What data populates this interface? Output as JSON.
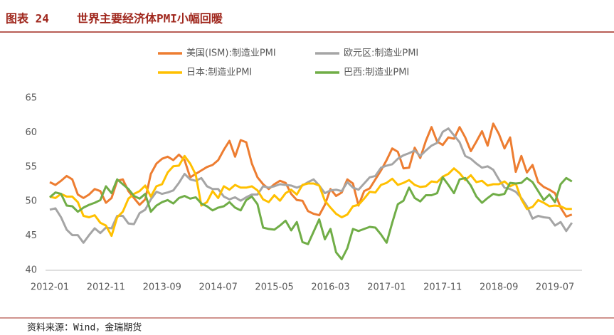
{
  "header": {
    "label": "图表 24",
    "title": "世界主要经济体PMI小幅回暖"
  },
  "source": "资料来源：Wind，金瑞期货",
  "chart_data": {
    "type": "line",
    "categories": [
      "2012-01",
      null,
      null,
      null,
      null,
      null,
      null,
      null,
      null,
      null,
      "2012-11",
      null,
      null,
      null,
      null,
      null,
      null,
      null,
      null,
      null,
      "2013-09",
      null,
      null,
      null,
      null,
      null,
      null,
      null,
      null,
      null,
      "2014-07",
      null,
      null,
      null,
      null,
      null,
      null,
      null,
      null,
      null,
      "2015-05",
      null,
      null,
      null,
      null,
      null,
      null,
      null,
      null,
      null,
      "2016-03",
      null,
      null,
      null,
      null,
      null,
      null,
      null,
      null,
      null,
      "2017-01",
      null,
      null,
      null,
      null,
      null,
      null,
      null,
      null,
      null,
      "2017-11",
      null,
      null,
      null,
      null,
      null,
      null,
      null,
      null,
      null,
      "2018-09",
      null,
      null,
      null,
      null,
      null,
      null,
      null,
      null,
      null,
      "2019-07",
      null,
      null,
      null
    ],
    "series": [
      {
        "name": "美国(ISM):制造业PMI",
        "color": "#ed7d31",
        "values": [
          52.8,
          52.4,
          53.0,
          53.7,
          53.2,
          51.0,
          50.5,
          51.0,
          51.8,
          51.5,
          49.8,
          50.5,
          53.0,
          53.2,
          51.5,
          50.5,
          49.5,
          50.3,
          54.0,
          55.5,
          56.2,
          56.5,
          56.0,
          56.8,
          56.0,
          53.5,
          54.0,
          54.5,
          55.0,
          55.3,
          56.0,
          57.5,
          58.8,
          56.5,
          58.9,
          58.6,
          55.5,
          53.5,
          52.5,
          51.8,
          52.5,
          53.0,
          52.7,
          51.1,
          50.2,
          50.1,
          48.6,
          48.2,
          48.0,
          49.5,
          51.8,
          50.8,
          51.3,
          53.2,
          52.6,
          49.4,
          51.5,
          51.9,
          53.2,
          54.5,
          56.0,
          57.7,
          57.2,
          54.8,
          54.9,
          57.8,
          56.3,
          58.8,
          60.8,
          58.7,
          58.2,
          59.3,
          59.1,
          60.8,
          59.3,
          57.3,
          58.7,
          60.2,
          58.1,
          61.3,
          59.8,
          57.7,
          59.3,
          54.3,
          56.6,
          54.2,
          55.3,
          52.8,
          52.1,
          51.7,
          51.2,
          49.1,
          47.8,
          48.1
        ]
      },
      {
        "name": "欧元区:制造业PMI",
        "color": "#a5a5a5",
        "values": [
          48.8,
          49.0,
          47.7,
          45.9,
          45.1,
          45.1,
          44.0,
          45.1,
          46.1,
          45.4,
          46.2,
          46.1,
          47.9,
          47.9,
          46.8,
          46.7,
          48.3,
          48.8,
          50.3,
          51.4,
          51.1,
          51.3,
          51.6,
          52.7,
          54.0,
          53.2,
          53.0,
          53.4,
          52.2,
          51.8,
          51.8,
          50.7,
          50.3,
          50.6,
          50.1,
          50.6,
          51.0,
          51.0,
          52.2,
          52.0,
          52.2,
          52.5,
          52.4,
          52.3,
          52.0,
          52.3,
          52.8,
          53.2,
          52.3,
          51.2,
          51.6,
          51.7,
          51.5,
          52.8,
          52.0,
          51.7,
          52.6,
          53.5,
          53.7,
          54.9,
          55.2,
          55.4,
          56.2,
          56.7,
          57.0,
          57.4,
          56.6,
          57.4,
          58.1,
          58.5,
          60.1,
          60.6,
          59.6,
          58.6,
          56.6,
          56.2,
          55.5,
          54.9,
          55.1,
          54.6,
          53.2,
          52.0,
          51.8,
          51.4,
          50.5,
          49.3,
          47.5,
          47.9,
          47.7,
          47.6,
          46.5,
          47.0,
          45.7,
          46.9
        ]
      },
      {
        "name": "日本:制造业PMI",
        "color": "#ffc000",
        "values": [
          50.7,
          50.5,
          51.1,
          50.7,
          50.7,
          49.9,
          47.9,
          47.7,
          48.0,
          46.9,
          46.5,
          45.0,
          47.7,
          48.5,
          50.4,
          51.1,
          51.5,
          52.3,
          50.7,
          52.2,
          52.5,
          54.2,
          55.1,
          55.2,
          56.6,
          55.5,
          53.9,
          49.4,
          49.9,
          51.5,
          50.5,
          52.2,
          51.7,
          52.4,
          52.0,
          52.0,
          52.2,
          51.6,
          50.3,
          49.9,
          50.9,
          50.1,
          51.2,
          51.7,
          51.0,
          52.4,
          52.6,
          52.6,
          52.3,
          50.1,
          49.1,
          48.2,
          47.7,
          48.1,
          49.3,
          49.5,
          50.4,
          51.4,
          51.3,
          52.4,
          52.7,
          53.3,
          52.4,
          52.7,
          53.1,
          52.4,
          52.1,
          52.2,
          52.9,
          52.8,
          53.6,
          54.0,
          54.8,
          54.1,
          53.1,
          53.8,
          52.8,
          53.0,
          52.3,
          52.5,
          52.5,
          52.9,
          52.2,
          52.6,
          50.3,
          48.9,
          49.2,
          50.2,
          49.8,
          49.3,
          49.4,
          49.3,
          48.9,
          48.9
        ]
      },
      {
        "name": "巴西:制造业PMI",
        "color": "#70ad47",
        "values": [
          50.6,
          51.3,
          51.1,
          49.4,
          49.3,
          48.5,
          49.1,
          49.5,
          49.8,
          50.2,
          52.2,
          51.2,
          53.2,
          52.5,
          51.8,
          50.8,
          50.4,
          51.1,
          48.5,
          49.4,
          49.9,
          50.2,
          49.7,
          50.5,
          50.8,
          50.4,
          50.6,
          49.7,
          49.3,
          48.7,
          49.1,
          49.3,
          49.9,
          49.1,
          48.7,
          50.2,
          50.7,
          49.6,
          46.2,
          46.0,
          45.9,
          46.5,
          47.2,
          45.8,
          47.0,
          44.1,
          43.8,
          45.6,
          47.4,
          44.5,
          46.0,
          42.6,
          41.6,
          43.2,
          46.0,
          45.7,
          46.0,
          46.3,
          46.2,
          45.2,
          44.0,
          46.9,
          49.6,
          50.1,
          52.0,
          50.5,
          50.0,
          50.9,
          50.9,
          51.2,
          53.5,
          52.4,
          51.2,
          53.2,
          53.4,
          52.3,
          50.7,
          49.8,
          50.5,
          51.1,
          50.9,
          51.1,
          52.7,
          52.6,
          52.7,
          53.4,
          52.8,
          51.5,
          50.2,
          51.0,
          49.9,
          52.5,
          53.4,
          52.9
        ]
      }
    ],
    "ylim": [
      40,
      65
    ],
    "yticks": [
      40,
      45,
      50,
      55,
      60,
      65
    ],
    "grid": false
  }
}
